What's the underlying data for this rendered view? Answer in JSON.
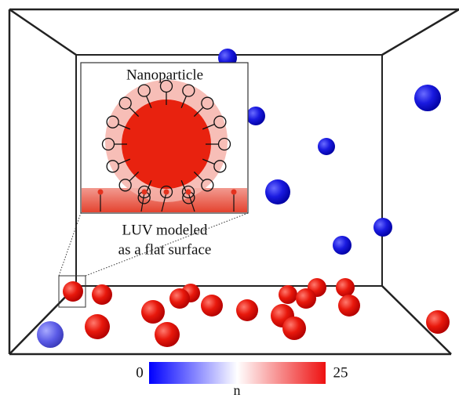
{
  "inset": {
    "title": "Nanoparticle",
    "caption_line1": "LUV modeled",
    "caption_line2": "as a flat surface"
  },
  "colorbar": {
    "min": 0,
    "max": 25,
    "label": "n"
  }
}
